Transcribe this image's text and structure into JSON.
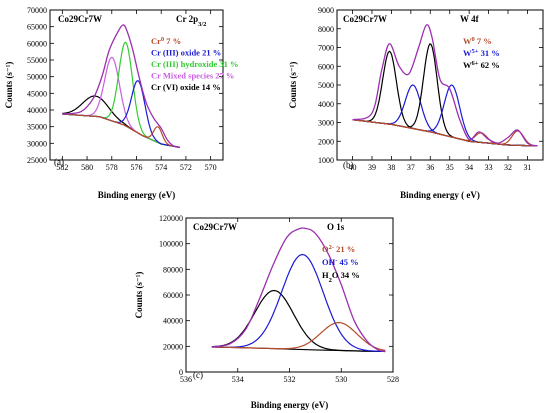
{
  "chart_data": [
    {
      "type": "line",
      "panel_label": "(a)",
      "sample": "Co29Cr7W",
      "title": "Cr 2p3/2",
      "title_main": "Cr 2p",
      "title_sub": "3/2",
      "xlabel": "Binding energy (eV)",
      "ylabel": "Counts (s⁻¹)",
      "xlim": [
        583,
        569
      ],
      "ylim": [
        25000,
        70000
      ],
      "xticks": [
        582,
        580,
        578,
        576,
        574,
        572,
        570
      ],
      "yticks": [
        25000,
        30000,
        35000,
        40000,
        45000,
        50000,
        55000,
        60000,
        65000,
        70000
      ],
      "x_reversed": true,
      "background": {
        "x": [
          582,
          579,
          577,
          575.5,
          574,
          572.5
        ],
        "y": [
          38800,
          38000,
          35500,
          32300,
          29800,
          28800
        ]
      },
      "envelope": {
        "color": "#9b2fb0",
        "x": [
          582,
          580.5,
          579.5,
          578.8,
          578.2,
          577.5,
          577.1,
          576.8,
          576.3,
          575.8,
          575.2,
          574.6,
          574.0,
          573.5,
          573.0,
          572.5
        ],
        "y": [
          38800,
          39500,
          43500,
          50000,
          58000,
          63500,
          65500,
          64000,
          58000,
          50000,
          42000,
          37500,
          34500,
          31000,
          29200,
          28800
        ]
      },
      "components": [
        {
          "name": "Cr (VI) oxide",
          "color": "#000000",
          "center": 579.4,
          "height": 44200,
          "width": 1.0
        },
        {
          "name": "Mixed species",
          "color": "#c85fe0",
          "center": 578.0,
          "height": 55800,
          "width": 0.6
        },
        {
          "name": "Cr (III) hydroxide",
          "color": "#33cc33",
          "center": 576.9,
          "height": 60300,
          "width": 0.55
        },
        {
          "name": "Cr (III) oxide",
          "color": "#1a1ad6",
          "center": 575.9,
          "height": 48800,
          "width": 0.55
        },
        {
          "name": "Cr0",
          "color": "#b54b2a",
          "center": 574.3,
          "height": 35000,
          "width": 0.35
        }
      ],
      "legend": [
        {
          "base": "Cr",
          "sup": "0",
          "value": " 7 %",
          "color": "#b54b2a"
        },
        {
          "base": "Cr (III) oxide 21 %",
          "sup": "",
          "value": "",
          "color": "#1a1ad6"
        },
        {
          "base": "Cr (III) hydroxide  31 %",
          "sup": "",
          "value": "",
          "color": "#33cc33"
        },
        {
          "base": "Cr Mixed species 27 %",
          "sup": "",
          "value": "",
          "color": "#c85fe0"
        },
        {
          "base": "Cr (VI) oxide  14 %",
          "sup": "",
          "value": "",
          "color": "#000000"
        }
      ]
    },
    {
      "type": "line",
      "panel_label": "(b)",
      "sample": "Co29Cr7W",
      "title": "W 4f",
      "xlabel": "Binding energy ( eV)",
      "ylabel": "Counts (s⁻¹)",
      "xlim": [
        40.8,
        30.2
      ],
      "ylim": [
        1000,
        9000
      ],
      "xticks": [
        40,
        39,
        38,
        37,
        36,
        35,
        34,
        33,
        32,
        31
      ],
      "yticks": [
        1000,
        2000,
        3000,
        4000,
        5000,
        6000,
        7000,
        8000,
        9000
      ],
      "x_reversed": true,
      "background": {
        "x": [
          40,
          38,
          36,
          34,
          32,
          30.5
        ],
        "y": [
          3150,
          2900,
          2500,
          2000,
          1800,
          1750
        ]
      },
      "envelope": {
        "color": "#9b2fb0",
        "x": [
          40,
          39,
          38.5,
          38.1,
          37.6,
          37.1,
          36.6,
          36.2,
          35.9,
          35.5,
          35.0,
          34.5,
          34.0,
          33.5,
          33.0,
          32.5,
          32.0,
          31.5,
          31.0,
          30.5
        ],
        "y": [
          3150,
          3500,
          5800,
          7200,
          6000,
          5600,
          7000,
          8200,
          7500,
          5300,
          4800,
          3200,
          2100,
          2500,
          2100,
          1900,
          2200,
          2600,
          1900,
          1750
        ]
      },
      "components": [
        {
          "name": "W6+ a",
          "color": "#000000",
          "center": 38.1,
          "height": 6800,
          "width": 0.35
        },
        {
          "name": "W5+ a",
          "color": "#1a1ad6",
          "center": 36.9,
          "height": 5000,
          "width": 0.4
        },
        {
          "name": "W6+ b",
          "color": "#000000",
          "center": 36.0,
          "height": 7200,
          "width": 0.35
        },
        {
          "name": "W5+ b",
          "color": "#1a1ad6",
          "center": 34.9,
          "height": 5000,
          "width": 0.4
        },
        {
          "name": "W0 a",
          "color": "#b54b2a",
          "center": 33.4,
          "height": 2450,
          "width": 0.3
        },
        {
          "name": "W0 b",
          "color": "#b54b2a",
          "center": 31.5,
          "height": 2550,
          "width": 0.3
        }
      ],
      "legend": [
        {
          "base": "W",
          "sup": "0",
          "value": "  7 %",
          "color": "#b54b2a"
        },
        {
          "base": "W",
          "sup": "5+",
          "value": " 31 %",
          "color": "#1a1ad6"
        },
        {
          "base": "W",
          "sup": "6+",
          "value": " 62 %",
          "color": "#000000"
        }
      ]
    },
    {
      "type": "line",
      "panel_label": "(c)",
      "sample": "Co29Cr7W",
      "title": "O 1s",
      "xlabel": "Binding energy (eV)",
      "ylabel": "Counts (s⁻¹)",
      "xlim": [
        536,
        528
      ],
      "ylim": [
        0,
        120000
      ],
      "xticks": [
        536,
        534,
        532,
        530,
        528
      ],
      "yticks": [
        0,
        20000,
        40000,
        60000,
        80000,
        100000,
        120000
      ],
      "x_reversed": true,
      "background": {
        "x": [
          535,
          533,
          531,
          529,
          528.3
        ],
        "y": [
          19500,
          18500,
          17200,
          16200,
          16000
        ]
      },
      "envelope": {
        "color": "#9b2fb0",
        "x": [
          535,
          534.3,
          533.7,
          533.2,
          532.6,
          532.1,
          531.7,
          531.4,
          531.0,
          530.5,
          530.0,
          529.5,
          529.0,
          528.6,
          528.3
        ],
        "y": [
          19500,
          22000,
          33000,
          55000,
          85000,
          105000,
          111000,
          112000,
          108000,
          92000,
          68000,
          40000,
          24000,
          17500,
          16000
        ]
      },
      "components": [
        {
          "name": "H2O",
          "color": "#000000",
          "center": 532.6,
          "height": 63500,
          "width": 0.75
        },
        {
          "name": "OH-",
          "color": "#1a1ad6",
          "center": 531.5,
          "height": 91500,
          "width": 0.8
        },
        {
          "name": "O2-",
          "color": "#b54b2a",
          "center": 530.1,
          "height": 38500,
          "width": 0.7
        }
      ],
      "legend": [
        {
          "base": "O",
          "sup": "2-",
          "value": "  21 %",
          "color": "#b54b2a"
        },
        {
          "base": "OH",
          "sup": "-",
          "value": " 45 %",
          "color": "#1a1ad6"
        },
        {
          "base": "H",
          "sub": "2",
          "after": "O 34 %",
          "color": "#000000"
        }
      ]
    }
  ]
}
